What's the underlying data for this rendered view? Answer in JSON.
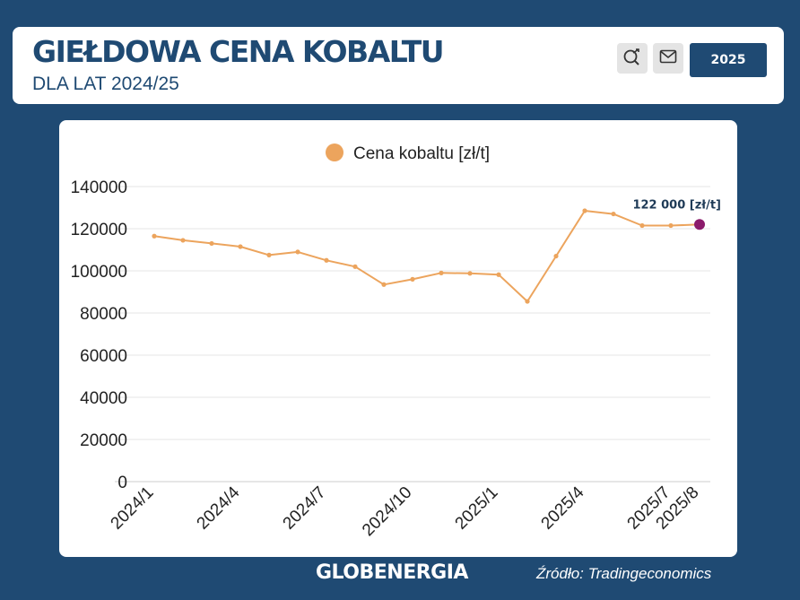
{
  "header": {
    "title": "GIEŁDOWA CENA KOBALTU",
    "subtitle": "DLA LAT 2024/25",
    "share_icon": "share-magnifier-icon",
    "mail_icon": "mail-icon",
    "year_button": "2025"
  },
  "colors": {
    "background": "#1f4a73",
    "line": "#eca45d",
    "highlight": "#8b1a6b",
    "button": "#1f4a73"
  },
  "chart_data": {
    "type": "line",
    "legend": "Cena kobaltu [zł/t]",
    "legend_position": "top-center",
    "grid": true,
    "ylim": [
      0,
      140000
    ],
    "yticks": [
      "0",
      "20000",
      "40000",
      "60000",
      "80000",
      "100000",
      "120000",
      "140000"
    ],
    "x_tick_labels": [
      {
        "label": "2024/1",
        "index": 0
      },
      {
        "label": "2024/4",
        "index": 3
      },
      {
        "label": "2024/7",
        "index": 6
      },
      {
        "label": "2024/10",
        "index": 9
      },
      {
        "label": "2025/1",
        "index": 12
      },
      {
        "label": "2025/4",
        "index": 15
      },
      {
        "label": "2025/7",
        "index": 18
      },
      {
        "label": "2025/8",
        "index": 19
      }
    ],
    "series": [
      {
        "name": "Cena kobaltu [zł/t]",
        "values": [
          116500,
          114500,
          113000,
          111500,
          107500,
          109000,
          105000,
          102000,
          93500,
          96000,
          99000,
          98800,
          98200,
          85500,
          107000,
          128500,
          127000,
          121500,
          121500,
          122000
        ]
      }
    ],
    "annotation": {
      "text": "122 000 [zł/t]",
      "index": 19
    }
  },
  "footer": {
    "brand": "GLOBENERGIA",
    "source": "Źródło: Tradingeconomics"
  }
}
